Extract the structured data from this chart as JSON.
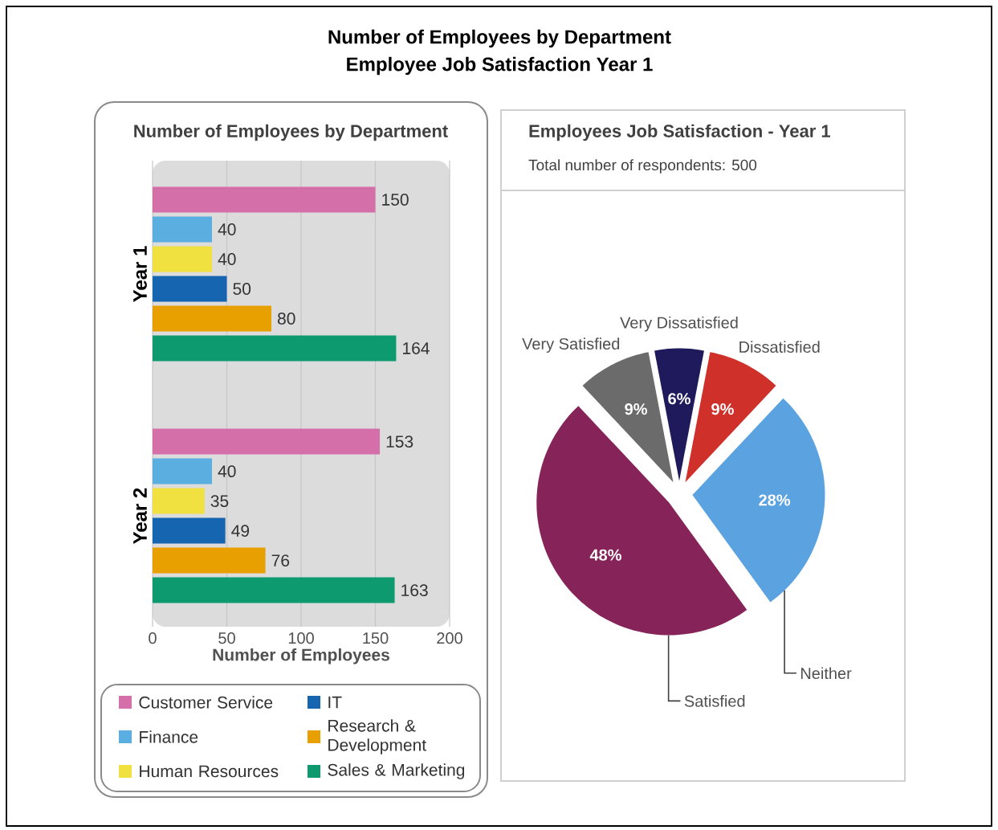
{
  "chart_data": [
    {
      "type": "other",
      "title": "Number of Employees by Department",
      "subtitle": "Employee Job Satisfaction Year 1"
    },
    {
      "type": "bar",
      "orientation": "horizontal",
      "title": "Number of Employees by Department",
      "xlabel": "Number of Employees",
      "categories": [
        "Year 1",
        "Year 2"
      ],
      "series": [
        {
          "name": "Customer Service",
          "color": "#d46fa9",
          "values": [
            150,
            153
          ]
        },
        {
          "name": "Finance",
          "color": "#5aaee0",
          "values": [
            40,
            40
          ]
        },
        {
          "name": "Human Resources",
          "color": "#f0e040",
          "values": [
            40,
            35
          ]
        },
        {
          "name": "IT",
          "color": "#1565b0",
          "values": [
            50,
            49
          ]
        },
        {
          "name": "Research & Development",
          "color": "#e8a000",
          "values": [
            80,
            76
          ]
        },
        {
          "name": "Sales & Marketing",
          "color": "#0c9a6e",
          "values": [
            164,
            163
          ]
        }
      ],
      "xlim": [
        0,
        200
      ],
      "xticks": [
        0,
        50,
        100,
        150,
        200
      ],
      "grid": "x",
      "legend": "bottom",
      "data_labels": true
    },
    {
      "type": "pie",
      "title": "Employees Job Satisfaction - Year 1",
      "subtitle": "Total number of respondents: 500",
      "categories": [
        "Very Dissatisfied",
        "Dissatisfied",
        "Neither",
        "Satisfied",
        "Very Satisfied"
      ],
      "values": [
        6,
        9,
        28,
        48,
        9
      ],
      "value_labels": [
        "6%",
        "9%",
        "28%",
        "48%",
        "9%"
      ],
      "colors": [
        "#1e1a5c",
        "#d0302a",
        "#5ba3e0",
        "#862358",
        "#6b6b6b"
      ]
    }
  ]
}
